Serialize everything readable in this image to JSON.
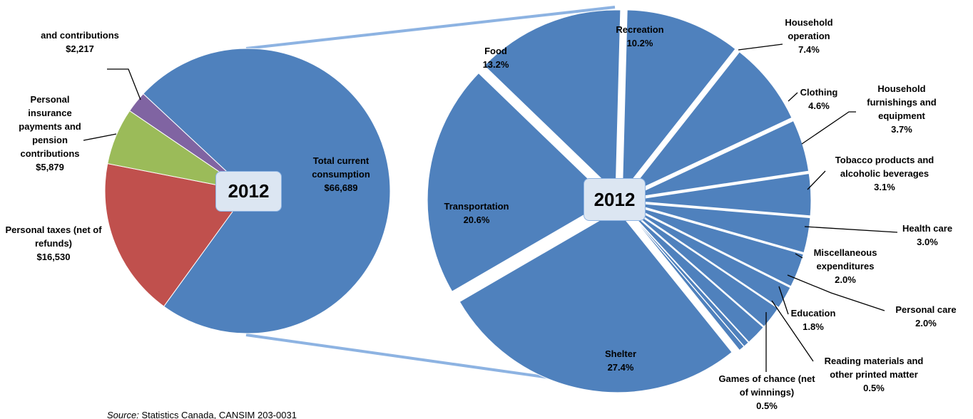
{
  "chart_data": [
    {
      "type": "pie",
      "center_label": "2012",
      "categories": [
        "Total current consumption",
        "Personal taxes (net of refunds)",
        "Personal insurance payments and pension contributions",
        "and contributions"
      ],
      "values": [
        66689,
        16530,
        5879,
        2217
      ],
      "value_labels": [
        "$66,689",
        "$16,530",
        "$5,879",
        "$2,217"
      ],
      "colors": [
        "#4f81bd",
        "#c0504d",
        "#9bbb59",
        "#8064a2"
      ]
    },
    {
      "type": "pie",
      "center_label": "2012",
      "color": "#4f81bd",
      "categories": [
        "Food",
        "Recreation",
        "Household operation",
        "Clothing",
        "Household furnishings and equipment",
        "Tobacco products and alcoholic beverages",
        "Health care",
        "Miscellaneous expenditures",
        "Personal care",
        "Education",
        "Reading materials and other printed matter",
        "Games of chance (net of winnings)",
        "Shelter",
        "Transportation"
      ],
      "values": [
        13.2,
        10.2,
        7.4,
        4.6,
        3.7,
        3.1,
        3.0,
        2.0,
        2.0,
        1.8,
        0.5,
        0.5,
        27.4,
        20.6
      ],
      "value_labels": [
        "13.2%",
        "10.2%",
        "7.4%",
        "4.6%",
        "3.7%",
        "3.1%",
        "3.0%",
        "2.0%",
        "2.0%",
        "1.8%",
        "0.5%",
        "0.5%",
        "27.4%",
        "20.6%"
      ]
    }
  ],
  "source": {
    "prefix": "Source:",
    "text": "Statistics Canada, CANSIM 203-0031"
  }
}
